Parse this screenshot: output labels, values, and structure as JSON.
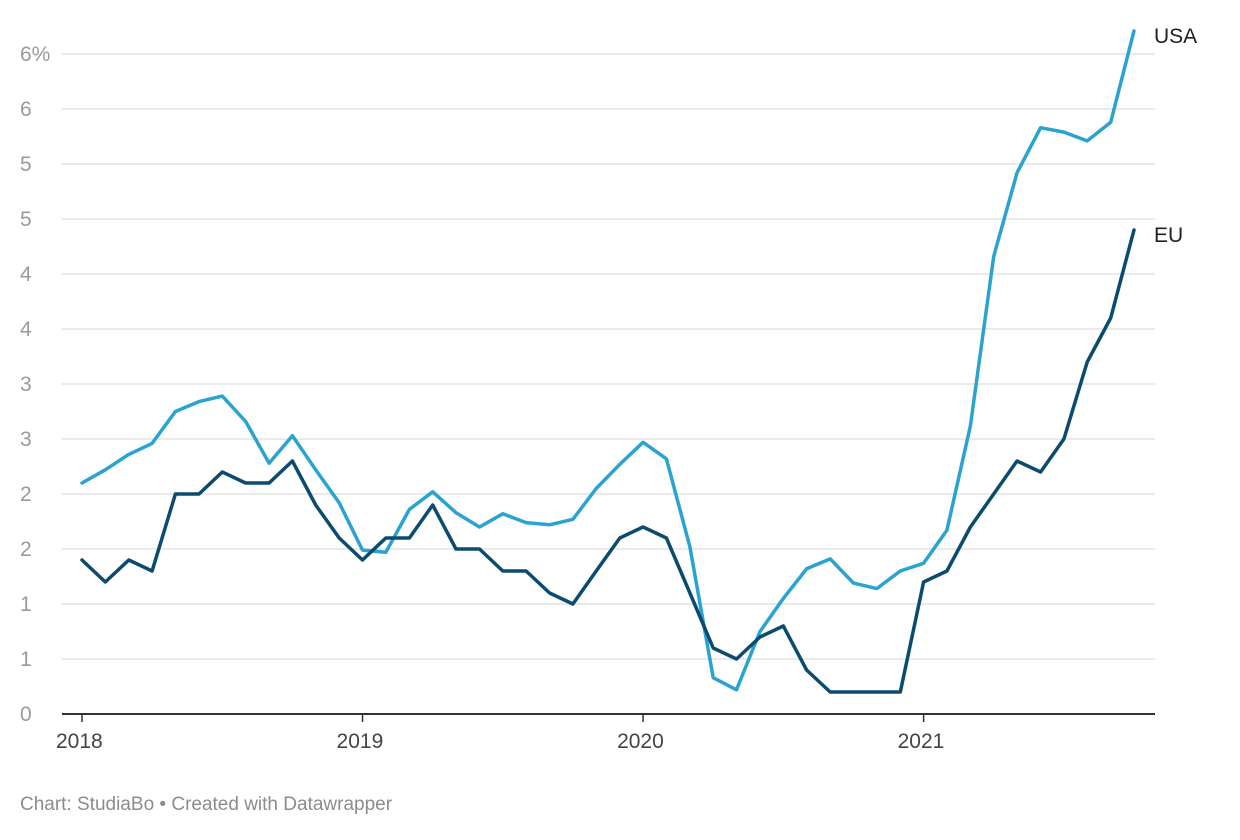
{
  "footer": {
    "credit": "Chart: StudiaBo • Created with Datawrapper"
  },
  "chart_data": {
    "type": "line",
    "title": "",
    "xlabel": "",
    "ylabel": "",
    "ylim": [
      0,
      6
    ],
    "y_ticks": [
      {
        "value": 0,
        "label": "0"
      },
      {
        "value": 0.5,
        "label": "1"
      },
      {
        "value": 1,
        "label": "1"
      },
      {
        "value": 1.5,
        "label": "2"
      },
      {
        "value": 2,
        "label": "2"
      },
      {
        "value": 2.5,
        "label": "3"
      },
      {
        "value": 3,
        "label": "3"
      },
      {
        "value": 3.5,
        "label": "4"
      },
      {
        "value": 4,
        "label": "4"
      },
      {
        "value": 4.5,
        "label": "5"
      },
      {
        "value": 5,
        "label": "5"
      },
      {
        "value": 5.5,
        "label": "6"
      },
      {
        "value": 6,
        "label": "6%"
      }
    ],
    "x_ticks": [
      {
        "value": 2018,
        "label": "2018"
      },
      {
        "value": 2019,
        "label": "2019"
      },
      {
        "value": 2020,
        "label": "2020"
      },
      {
        "value": 2021,
        "label": "2021"
      }
    ],
    "xlim": [
      2018,
      2021.75
    ],
    "grid": true,
    "legend": "direct labels at line ends",
    "colors": {
      "USA": "#2aa3d0",
      "EU": "#0b4c6e"
    },
    "x": [
      2018.0,
      2018.083,
      2018.167,
      2018.25,
      2018.333,
      2018.417,
      2018.5,
      2018.583,
      2018.667,
      2018.75,
      2018.833,
      2018.917,
      2019.0,
      2019.083,
      2019.167,
      2019.25,
      2019.333,
      2019.417,
      2019.5,
      2019.583,
      2019.667,
      2019.75,
      2019.833,
      2019.917,
      2020.0,
      2020.083,
      2020.167,
      2020.25,
      2020.333,
      2020.417,
      2020.5,
      2020.583,
      2020.667,
      2020.75,
      2020.833,
      2020.917,
      2021.0,
      2021.083,
      2021.167,
      2021.25,
      2021.333,
      2021.417,
      2021.5,
      2021.583,
      2021.667,
      2021.75
    ],
    "series": [
      {
        "name": "USA",
        "values": [
          2.1,
          2.22,
          2.36,
          2.46,
          2.75,
          2.84,
          2.89,
          2.66,
          2.28,
          2.53,
          2.22,
          1.92,
          1.49,
          1.47,
          1.86,
          2.02,
          1.83,
          1.7,
          1.82,
          1.74,
          1.72,
          1.77,
          2.05,
          2.27,
          2.47,
          2.32,
          1.52,
          0.33,
          0.22,
          0.75,
          1.05,
          1.32,
          1.41,
          1.19,
          1.14,
          1.3,
          1.37,
          1.67,
          2.62,
          4.16,
          4.92,
          5.33,
          5.29,
          5.21,
          5.38,
          6.21
        ]
      },
      {
        "name": "EU",
        "values": [
          1.4,
          1.2,
          1.4,
          1.3,
          2.0,
          2.0,
          2.2,
          2.1,
          2.1,
          2.3,
          1.9,
          1.6,
          1.4,
          1.6,
          1.6,
          1.9,
          1.5,
          1.5,
          1.3,
          1.3,
          1.1,
          1.0,
          1.3,
          1.6,
          1.7,
          1.6,
          1.1,
          0.6,
          0.5,
          0.7,
          0.8,
          0.4,
          0.2,
          0.2,
          0.2,
          0.2,
          1.2,
          1.3,
          1.7,
          2.0,
          2.3,
          2.2,
          2.5,
          3.2,
          3.6,
          4.4
        ]
      }
    ]
  }
}
